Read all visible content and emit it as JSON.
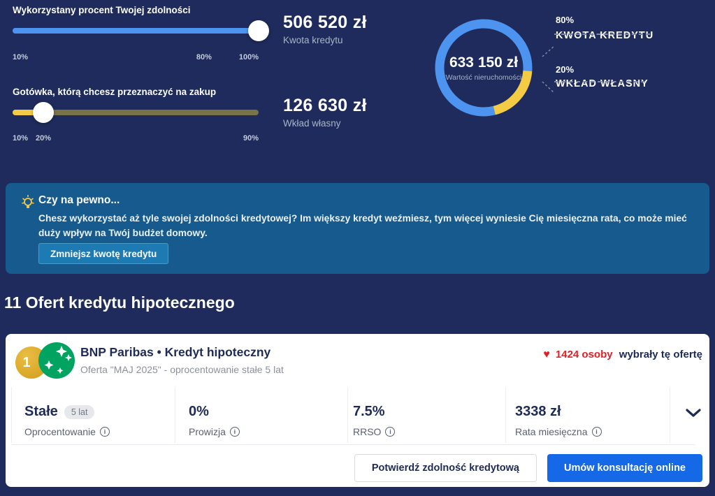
{
  "theme": {
    "page_bg": "#1e2b5c",
    "accent_blue": "#4d94f0",
    "accent_yellow": "#f3cb44",
    "slider_rest_olive": "#7b7348",
    "panel_blue": "#175a8e",
    "panel_button_blue": "#1e7ab2",
    "text_navy": "#1d2b56",
    "text_muted": "#a9b4c8",
    "red": "#e21f26",
    "cta_blue": "#1569e6",
    "logo_green": "#00a35f",
    "badge_gold": "#d9a626"
  },
  "calculator": {
    "ability_slider": {
      "label": "Wykorzystany procent Twojej zdolności",
      "min": 10,
      "max": 100,
      "value": 100,
      "unit": "%",
      "ticks": [
        {
          "label": "10%",
          "pos": 0
        },
        {
          "label": "80%",
          "pos": 77.8
        },
        {
          "label": "100%",
          "pos": 100
        }
      ]
    },
    "cash_slider": {
      "label": "Gotówka, którą chcesz przeznaczyć na zakup",
      "min": 10,
      "max": 90,
      "value": 20,
      "unit": "%",
      "ticks": [
        {
          "label": "10%",
          "pos": 0
        },
        {
          "label": "20%",
          "pos": 12.5
        },
        {
          "label": "90%",
          "pos": 100
        }
      ]
    },
    "loan_amount": {
      "value": "506 520 zł",
      "label": "Kwota kredytu"
    },
    "own_contribution": {
      "value": "126 630 zł",
      "label": "Wkład własny"
    }
  },
  "chart_data": {
    "type": "pie",
    "style": "donut",
    "center_value": "633 150 zł",
    "center_label": "Wartość nieruchomości",
    "rotation_deg": 166,
    "legend_position": "right",
    "segments": [
      {
        "name": "KWOTA KREDYTU",
        "percent_label": "80%",
        "value": 80,
        "color": "#4d94f0"
      },
      {
        "name": "WKŁAD WŁASNY",
        "percent_label": "20%",
        "value": 20,
        "color": "#f3cb44"
      }
    ]
  },
  "warning": {
    "title": "Czy na pewno...",
    "body": "Chesz wykorzystać aż tyle swojej zdolności kredytowej? Im większy kredyt weźmiesz, tym więcej wyniesie Cię miesięczna rata, co może mieć duży wpływ na Twój budżet domowy.",
    "button_label": "Zmniejsz kwotę kredytu"
  },
  "offers": {
    "heading": "11 Ofert kredytu hipotecznego",
    "card": {
      "rank": "1",
      "title": "BNP Paribas • Kredyt hipoteczny",
      "subtitle": "Oferta \"MAJ 2025\" - oprocentowanie stałe 5 lat",
      "popularity_count": "1424 osoby",
      "popularity_text": "wybrały tę ofertę",
      "stats": [
        {
          "value": "Stałe",
          "badge": "5 lat",
          "label": "Oprocentowanie"
        },
        {
          "value": "0%",
          "label": "Prowizja"
        },
        {
          "value": "7.5%",
          "label": "RRSO"
        },
        {
          "value": "3338 zł",
          "label": "Rata miesięczna"
        }
      ],
      "secondary_action": "Potwierdź zdolność kredytową",
      "primary_action": "Umów konsultację online"
    }
  },
  "icons": {
    "info_glyph": "i",
    "heart_glyph": "♥"
  }
}
